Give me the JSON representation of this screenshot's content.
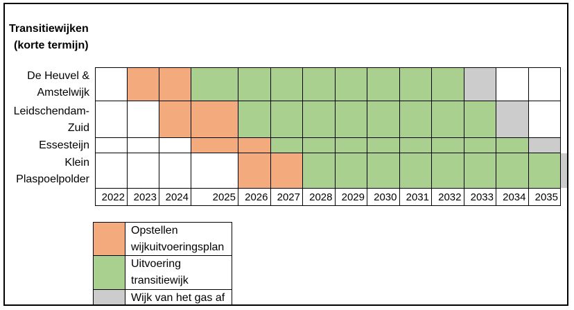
{
  "title": {
    "line1": "Transitiewijken",
    "line2": "(korte termijn)"
  },
  "chart_data": {
    "type": "heatmap",
    "title": "Transitiewijken (korte termijn)",
    "years": [
      "2022",
      "2023",
      "2024",
      "2025",
      "2026",
      "2027",
      "2028",
      "2029",
      "2030",
      "2031",
      "2032",
      "2033",
      "2034",
      "2035"
    ],
    "state_colors": {
      "none": "#FFFFFF",
      "plan": "#F3AB7D",
      "uitvoering": "#A9D08E",
      "gas_af": "#CDCCCC"
    },
    "rows": [
      {
        "label": "De Heuvel & Amstelwijk",
        "label_lines": [
          "De Heuvel &",
          "Amstelwijk"
        ],
        "states": [
          "none",
          "plan",
          "plan",
          "uitvoering",
          "uitvoering",
          "uitvoering",
          "uitvoering",
          "uitvoering",
          "uitvoering",
          "uitvoering",
          "uitvoering",
          "gas_af",
          "none",
          "none"
        ]
      },
      {
        "label": "Leidschendam-Zuid",
        "label_lines": [
          "Leidschendam-",
          "Zuid"
        ],
        "states": [
          "none",
          "none",
          "plan",
          "plan",
          "uitvoering",
          "uitvoering",
          "uitvoering",
          "uitvoering",
          "uitvoering",
          "uitvoering",
          "uitvoering",
          "uitvoering",
          "gas_af",
          "none"
        ]
      },
      {
        "label": "Essesteijn",
        "label_lines": [
          "Essesteijn"
        ],
        "states": [
          "none",
          "none",
          "none",
          "plan",
          "plan",
          "uitvoering",
          "uitvoering",
          "uitvoering",
          "uitvoering",
          "uitvoering",
          "uitvoering",
          "uitvoering",
          "uitvoering",
          "gas_af"
        ]
      },
      {
        "label": "Klein Plaspoelpolder",
        "label_lines": [
          "Klein",
          "Plaspoelpolder"
        ],
        "states": [
          "none",
          "none",
          "none",
          "none",
          "plan",
          "plan",
          "uitvoering",
          "uitvoering",
          "uitvoering",
          "uitvoering",
          "uitvoering",
          "uitvoering",
          "uitvoering",
          "uitvoering"
        ]
      }
    ],
    "overflow_cell": {
      "row": "Klein Plaspoelpolder",
      "state": "gas_af",
      "partial": true
    },
    "legend": [
      {
        "state": "plan",
        "lines": [
          "Opstellen",
          "wijkuitvoeringsplan"
        ]
      },
      {
        "state": "uitvoering",
        "lines": [
          "Uitvoering",
          "transitiewijk"
        ]
      },
      {
        "state": "gas_af",
        "lines": [
          "Wijk van het gas af"
        ]
      }
    ]
  }
}
